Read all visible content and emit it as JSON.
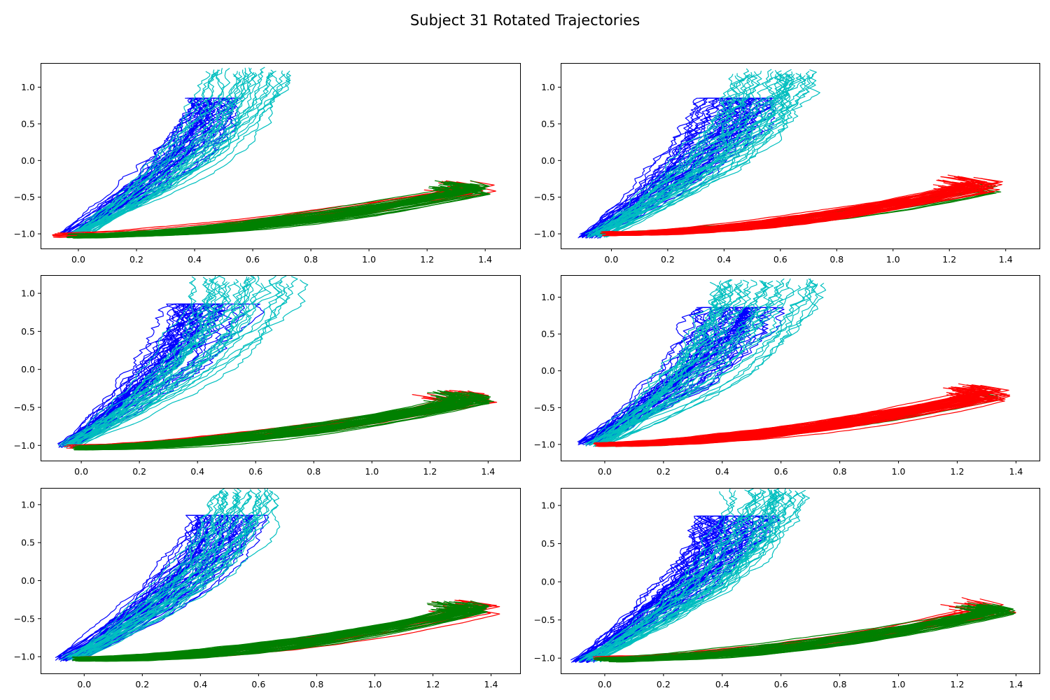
{
  "figure": {
    "title": "Subject 31 Rotated Trajectories"
  },
  "colors": {
    "blue": "#0000ff",
    "cyan": "#00bfbf",
    "red": "#ff0000",
    "green": "#008000"
  },
  "chart_data": [
    {
      "type": "line",
      "panel": "top-left",
      "xlim": [
        -0.13,
        1.52
      ],
      "ylim": [
        -1.2,
        1.33
      ],
      "xticks": [
        0.0,
        0.2,
        0.4,
        0.6,
        0.8,
        1.0,
        1.2,
        1.4
      ],
      "yticks": [
        -1.0,
        -0.5,
        0.0,
        0.5,
        1.0
      ],
      "xtick_labels": [
        "0.0",
        "0.2",
        "0.4",
        "0.6",
        "0.8",
        "1.0",
        "1.2",
        "1.4"
      ],
      "ytick_labels": [
        "−1.0",
        "−0.5",
        "0.0",
        "0.5",
        "1.0"
      ],
      "grid": false,
      "series": [
        {
          "color": "blue",
          "count": 40,
          "start": [
            -0.02,
            -1.0
          ],
          "x_end_range": [
            0.39,
            0.55
          ],
          "y_end": 0.85,
          "y_end_jitter": 0.0,
          "jitter": 0.025,
          "curve": 1.6,
          "form": "upward"
        },
        {
          "color": "cyan",
          "count": 30,
          "start": [
            0.0,
            -1.02
          ],
          "x_end_range": [
            0.42,
            0.72
          ],
          "y_end": 1.22,
          "y_end_jitter": 0.05,
          "jitter": 0.02,
          "curve": 1.8,
          "form": "upward"
        },
        {
          "color": "red",
          "count": 20,
          "start": [
            -0.05,
            -1.02
          ],
          "x_end_range": [
            1.3,
            1.44
          ],
          "y_end": -0.4,
          "y_end_jitter": 0.07,
          "jitter": 0.008,
          "curve": 1.8,
          "form": "flat"
        },
        {
          "color": "green",
          "count": 45,
          "start": [
            0.0,
            -1.03
          ],
          "x_end_range": [
            1.3,
            1.42
          ],
          "y_end": -0.4,
          "y_end_jitter": 0.06,
          "jitter": 0.006,
          "curve": 1.8,
          "form": "flat"
        }
      ]
    },
    {
      "type": "line",
      "panel": "top-right",
      "xlim": [
        -0.18,
        1.52
      ],
      "ylim": [
        -1.2,
        1.33
      ],
      "xticks": [
        0.0,
        0.2,
        0.4,
        0.6,
        0.8,
        1.0,
        1.2,
        1.4
      ],
      "yticks": [
        -1.0,
        -0.5,
        0.0,
        0.5,
        1.0
      ],
      "xtick_labels": [
        "0.0",
        "0.2",
        "0.4",
        "0.6",
        "0.8",
        "1.0",
        "1.2",
        "1.4"
      ],
      "ytick_labels": [
        "−1.0",
        "−0.5",
        "0.0",
        "0.5",
        "1.0"
      ],
      "grid": false,
      "series": [
        {
          "color": "blue",
          "count": 45,
          "start": [
            -0.08,
            -1.03
          ],
          "x_end_range": [
            0.3,
            0.58
          ],
          "y_end": 0.85,
          "y_end_jitter": 0.0,
          "jitter": 0.03,
          "curve": 1.5,
          "form": "upward"
        },
        {
          "color": "cyan",
          "count": 35,
          "start": [
            -0.05,
            -1.02
          ],
          "x_end_range": [
            0.45,
            0.73
          ],
          "y_end": 1.2,
          "y_end_jitter": 0.05,
          "jitter": 0.03,
          "curve": 1.6,
          "form": "upward"
        },
        {
          "color": "green",
          "count": 8,
          "start": [
            0.0,
            -1.0
          ],
          "x_end_range": [
            1.3,
            1.4
          ],
          "y_end": -0.4,
          "y_end_jitter": 0.05,
          "jitter": 0.006,
          "curve": 1.8,
          "form": "flat"
        },
        {
          "color": "red",
          "count": 45,
          "start": [
            0.0,
            -1.0
          ],
          "x_end_range": [
            1.25,
            1.39
          ],
          "y_end": -0.35,
          "y_end_jitter": 0.08,
          "jitter": 0.008,
          "curve": 1.8,
          "form": "flat"
        }
      ]
    },
    {
      "type": "line",
      "panel": "middle-left",
      "xlim": [
        -0.14,
        1.51
      ],
      "ylim": [
        -1.2,
        1.24
      ],
      "xticks": [
        0.0,
        0.2,
        0.4,
        0.6,
        0.8,
        1.0,
        1.2,
        1.4
      ],
      "yticks": [
        -1.0,
        -0.5,
        0.0,
        0.5,
        1.0
      ],
      "xtick_labels": [
        "0.0",
        "0.2",
        "0.4",
        "0.6",
        "0.8",
        "1.0",
        "1.2",
        "1.4"
      ],
      "ytick_labels": [
        "−1.0",
        "−0.5",
        "0.0",
        "0.5",
        "1.0"
      ],
      "grid": false,
      "series": [
        {
          "color": "blue",
          "count": 40,
          "start": [
            -0.05,
            -1.0
          ],
          "x_end_range": [
            0.3,
            0.57
          ],
          "y_end": 0.86,
          "y_end_jitter": 0.0,
          "jitter": 0.03,
          "curve": 1.5,
          "form": "upward"
        },
        {
          "color": "cyan",
          "count": 30,
          "start": [
            -0.04,
            -1.0
          ],
          "x_end_range": [
            0.38,
            0.75
          ],
          "y_end": 1.18,
          "y_end_jitter": 0.06,
          "jitter": 0.025,
          "curve": 1.7,
          "form": "upward"
        },
        {
          "color": "red",
          "count": 20,
          "start": [
            -0.02,
            -1.02
          ],
          "x_end_range": [
            1.25,
            1.43
          ],
          "y_end": -0.38,
          "y_end_jitter": 0.07,
          "jitter": 0.008,
          "curve": 1.8,
          "form": "flat"
        },
        {
          "color": "green",
          "count": 45,
          "start": [
            0.0,
            -1.03
          ],
          "x_end_range": [
            1.28,
            1.42
          ],
          "y_end": -0.4,
          "y_end_jitter": 0.06,
          "jitter": 0.006,
          "curve": 1.8,
          "form": "flat"
        }
      ]
    },
    {
      "type": "line",
      "panel": "middle-right",
      "xlim": [
        -0.15,
        1.48
      ],
      "ylim": [
        -1.22,
        1.3
      ],
      "xticks": [
        0.0,
        0.2,
        0.4,
        0.6,
        0.8,
        1.0,
        1.2,
        1.4
      ],
      "yticks": [
        -1.0,
        -0.5,
        0.0,
        0.5,
        1.0
      ],
      "xtick_labels": [
        "0.0",
        "0.2",
        "0.4",
        "0.6",
        "0.8",
        "1.0",
        "1.2",
        "1.4"
      ],
      "ytick_labels": [
        "−1.0",
        "−0.5",
        "0.0",
        "0.5",
        "1.0"
      ],
      "grid": false,
      "series": [
        {
          "color": "blue",
          "count": 45,
          "start": [
            -0.05,
            -0.98
          ],
          "x_end_range": [
            0.33,
            0.57
          ],
          "y_end": 0.86,
          "y_end_jitter": 0.0,
          "jitter": 0.03,
          "curve": 1.5,
          "form": "upward"
        },
        {
          "color": "cyan",
          "count": 35,
          "start": [
            -0.03,
            -1.0
          ],
          "x_end_range": [
            0.38,
            0.73
          ],
          "y_end": 1.2,
          "y_end_jitter": 0.05,
          "jitter": 0.028,
          "curve": 1.6,
          "form": "upward"
        },
        {
          "color": "green",
          "count": 6,
          "start": [
            0.0,
            -1.0
          ],
          "x_end_range": [
            1.3,
            1.38
          ],
          "y_end": -0.38,
          "y_end_jitter": 0.04,
          "jitter": 0.006,
          "curve": 1.8,
          "form": "flat"
        },
        {
          "color": "red",
          "count": 50,
          "start": [
            0.0,
            -1.0
          ],
          "x_end_range": [
            1.25,
            1.38
          ],
          "y_end": -0.33,
          "y_end_jitter": 0.08,
          "jitter": 0.008,
          "curve": 1.8,
          "form": "flat"
        }
      ]
    },
    {
      "type": "line",
      "panel": "bottom-left",
      "xlim": [
        -0.15,
        1.5
      ],
      "ylim": [
        -1.22,
        1.22
      ],
      "xticks": [
        0.0,
        0.2,
        0.4,
        0.6,
        0.8,
        1.0,
        1.2,
        1.4
      ],
      "yticks": [
        -1.0,
        -0.5,
        0.0,
        0.5,
        1.0
      ],
      "xtick_labels": [
        "0.0",
        "0.2",
        "0.4",
        "0.6",
        "0.8",
        "1.0",
        "1.2",
        "1.4"
      ],
      "ytick_labels": [
        "−1.0",
        "−0.5",
        "0.0",
        "0.5",
        "1.0"
      ],
      "grid": false,
      "series": [
        {
          "color": "blue",
          "count": 50,
          "start": [
            -0.06,
            -1.03
          ],
          "x_end_range": [
            0.38,
            0.6
          ],
          "y_end": 0.86,
          "y_end_jitter": 0.0,
          "jitter": 0.02,
          "curve": 1.6,
          "form": "upward"
        },
        {
          "color": "cyan",
          "count": 30,
          "start": [
            -0.04,
            -1.02
          ],
          "x_end_range": [
            0.42,
            0.68
          ],
          "y_end": 1.16,
          "y_end_jitter": 0.05,
          "jitter": 0.02,
          "curve": 1.8,
          "form": "upward"
        },
        {
          "color": "red",
          "count": 20,
          "start": [
            0.0,
            -1.03
          ],
          "x_end_range": [
            1.28,
            1.43
          ],
          "y_end": -0.38,
          "y_end_jitter": 0.07,
          "jitter": 0.007,
          "curve": 1.8,
          "form": "flat"
        },
        {
          "color": "green",
          "count": 45,
          "start": [
            0.0,
            -1.03
          ],
          "x_end_range": [
            1.28,
            1.4
          ],
          "y_end": -0.38,
          "y_end_jitter": 0.06,
          "jitter": 0.006,
          "curve": 1.8,
          "form": "flat"
        }
      ]
    },
    {
      "type": "line",
      "panel": "bottom-right",
      "xlim": [
        -0.15,
        1.48
      ],
      "ylim": [
        -1.2,
        1.23
      ],
      "xticks": [
        0.0,
        0.2,
        0.4,
        0.6,
        0.8,
        1.0,
        1.2,
        1.4
      ],
      "yticks": [
        -1.0,
        -0.5,
        0.0,
        0.5,
        1.0
      ],
      "xtick_labels": [
        "0.0",
        "0.2",
        "0.4",
        "0.6",
        "0.8",
        "1.0",
        "1.2",
        "1.4"
      ],
      "ytick_labels": [
        "−1.0",
        "−0.5",
        "0.0",
        "0.5",
        "1.0"
      ],
      "grid": false,
      "series": [
        {
          "color": "blue",
          "count": 50,
          "start": [
            -0.07,
            -1.03
          ],
          "x_end_range": [
            0.33,
            0.57
          ],
          "y_end": 0.86,
          "y_end_jitter": 0.0,
          "jitter": 0.03,
          "curve": 1.5,
          "form": "upward"
        },
        {
          "color": "cyan",
          "count": 35,
          "start": [
            -0.05,
            -1.02
          ],
          "x_end_range": [
            0.42,
            0.7
          ],
          "y_end": 1.18,
          "y_end_jitter": 0.05,
          "jitter": 0.025,
          "curve": 1.7,
          "form": "upward"
        },
        {
          "color": "red",
          "count": 22,
          "start": [
            0.0,
            -1.0
          ],
          "x_end_range": [
            1.25,
            1.4
          ],
          "y_end": -0.36,
          "y_end_jitter": 0.08,
          "jitter": 0.008,
          "curve": 1.8,
          "form": "flat"
        },
        {
          "color": "green",
          "count": 40,
          "start": [
            0.0,
            -1.02
          ],
          "x_end_range": [
            1.3,
            1.4
          ],
          "y_end": -0.38,
          "y_end_jitter": 0.05,
          "jitter": 0.006,
          "curve": 1.8,
          "form": "flat"
        }
      ]
    }
  ]
}
